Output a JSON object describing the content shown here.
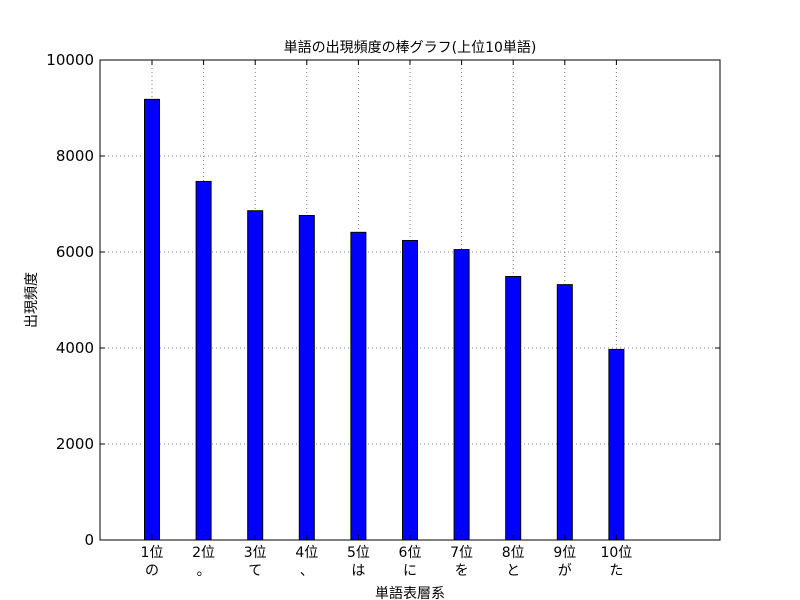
{
  "chart_data": {
    "type": "bar",
    "title": "単語の出現頻度の棒グラフ(上位10単語)",
    "xlabel": "単語表層系",
    "ylabel": "出現頻度",
    "categories": [
      "1位\nの",
      "2位\n。",
      "3位\nて",
      "4位\n、",
      "5位\nは",
      "6位\nに",
      "7位\nを",
      "8位\nと",
      "9位\nが",
      "10位\nた"
    ],
    "values": [
      9180,
      7470,
      6860,
      6760,
      6410,
      6240,
      6050,
      5490,
      5320,
      3970
    ],
    "ylim": [
      0,
      10000
    ],
    "yticks": [
      "0",
      "2000",
      "4000",
      "6000",
      "8000",
      "10000"
    ],
    "grid": true,
    "bar_color": "#0000ff",
    "edge_color": "#000000",
    "grid_color": "#808080"
  }
}
